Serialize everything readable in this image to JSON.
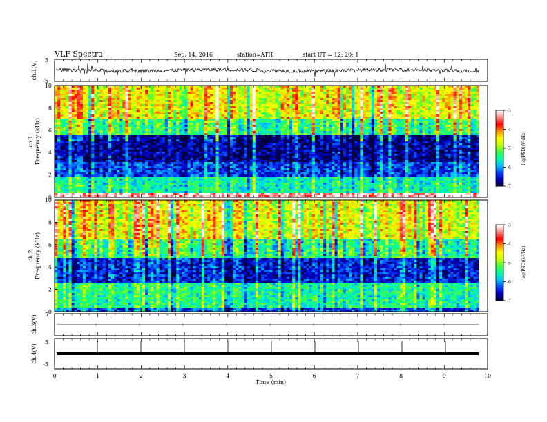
{
  "header": {
    "title": "VLF  Spectra",
    "date": "Sep. 14, 2016",
    "station": "station=ATH",
    "start": "start  UT  =    12: 20: 1"
  },
  "chart_data": [
    {
      "type": "line",
      "id": "ch1-waveform",
      "ylabel": "ch.1(V)",
      "ylim": [
        -5,
        5
      ],
      "yticks": [
        "5",
        "-5"
      ],
      "xlim": [
        0,
        10
      ],
      "description_values": {
        "baseline": 0.0,
        "noise_amplitude": 0.8,
        "spike_amplitude": 2.5,
        "end_minute": 9.8
      }
    },
    {
      "type": "heatmap",
      "id": "ch1-spectrogram",
      "ylabel": "Frequency  (kHz)",
      "channel_label": "ch.1",
      "ylim": [
        0,
        10
      ],
      "yticks": [
        "0",
        "2",
        "4",
        "6",
        "8",
        "10"
      ],
      "xlim": [
        0,
        9.8
      ],
      "colorbar": {
        "label": "log(PSD)(V²/Hz)",
        "range": [
          -7,
          -3
        ],
        "ticks": [
          "-3",
          "-4",
          "-5",
          "-6",
          "-7"
        ]
      },
      "bands": [
        {
          "from_khz": 0,
          "to_khz": 0.3,
          "level": -3.2
        },
        {
          "from_khz": 0.3,
          "to_khz": 1.8,
          "level": -5.6
        },
        {
          "from_khz": 1.8,
          "to_khz": 3.2,
          "level": -6.4
        },
        {
          "from_khz": 3.2,
          "to_khz": 5.5,
          "level": -6.8
        },
        {
          "from_khz": 5.5,
          "to_khz": 7.0,
          "level": -5.4
        },
        {
          "from_khz": 7.0,
          "to_khz": 10,
          "level": -4.6
        }
      ]
    },
    {
      "type": "heatmap",
      "id": "ch2-spectrogram",
      "ylabel": "Frequency  (kHz)",
      "channel_label": "ch.2",
      "ylim": [
        0,
        10
      ],
      "yticks": [
        "0",
        "2",
        "4",
        "6",
        "8",
        "10"
      ],
      "xlim": [
        0,
        9.8
      ],
      "colorbar": {
        "label": "log(PSD)(V²/Hz)",
        "range": [
          -7,
          -3
        ],
        "ticks": [
          "-3",
          "-4",
          "-5",
          "-6",
          "-7"
        ]
      },
      "bands": [
        {
          "from_khz": 0,
          "to_khz": 0.4,
          "level": -6.3
        },
        {
          "from_khz": 0.4,
          "to_khz": 2.6,
          "level": -5.5
        },
        {
          "from_khz": 2.6,
          "to_khz": 4.8,
          "level": -6.5
        },
        {
          "from_khz": 4.8,
          "to_khz": 6.5,
          "level": -5.4
        },
        {
          "from_khz": 6.5,
          "to_khz": 10,
          "level": -4.6
        }
      ]
    },
    {
      "type": "line",
      "id": "ch3-waveform",
      "ylabel": "ch.3(V)",
      "ylim": [
        -5,
        5
      ],
      "yticks": [
        "5"
      ],
      "xlim": [
        0,
        10
      ],
      "description_values": {
        "baseline": 0.0,
        "end_minute": 9.8
      }
    },
    {
      "type": "line",
      "id": "ch4-waveform",
      "ylabel": "ch.4(V)",
      "ylim": [
        -5,
        5
      ],
      "yticks": [
        "5",
        "-5"
      ],
      "xlim": [
        0,
        10
      ],
      "description_values": {
        "baseline": 0.0,
        "end_minute": 9.8
      }
    }
  ],
  "xaxis": {
    "label": "Time  (min)",
    "ticks": [
      "0",
      "1",
      "2",
      "3",
      "4",
      "5",
      "6",
      "7",
      "8",
      "9",
      "10"
    ]
  },
  "colors": {
    "axis": "#000000",
    "colormap": [
      "#000040",
      "#0000c8",
      "#0050ff",
      "#00c8ff",
      "#00ffa0",
      "#40ff40",
      "#c8ff00",
      "#ffff00",
      "#ff9000",
      "#ff0000",
      "#ff8080",
      "#ffffff"
    ]
  }
}
